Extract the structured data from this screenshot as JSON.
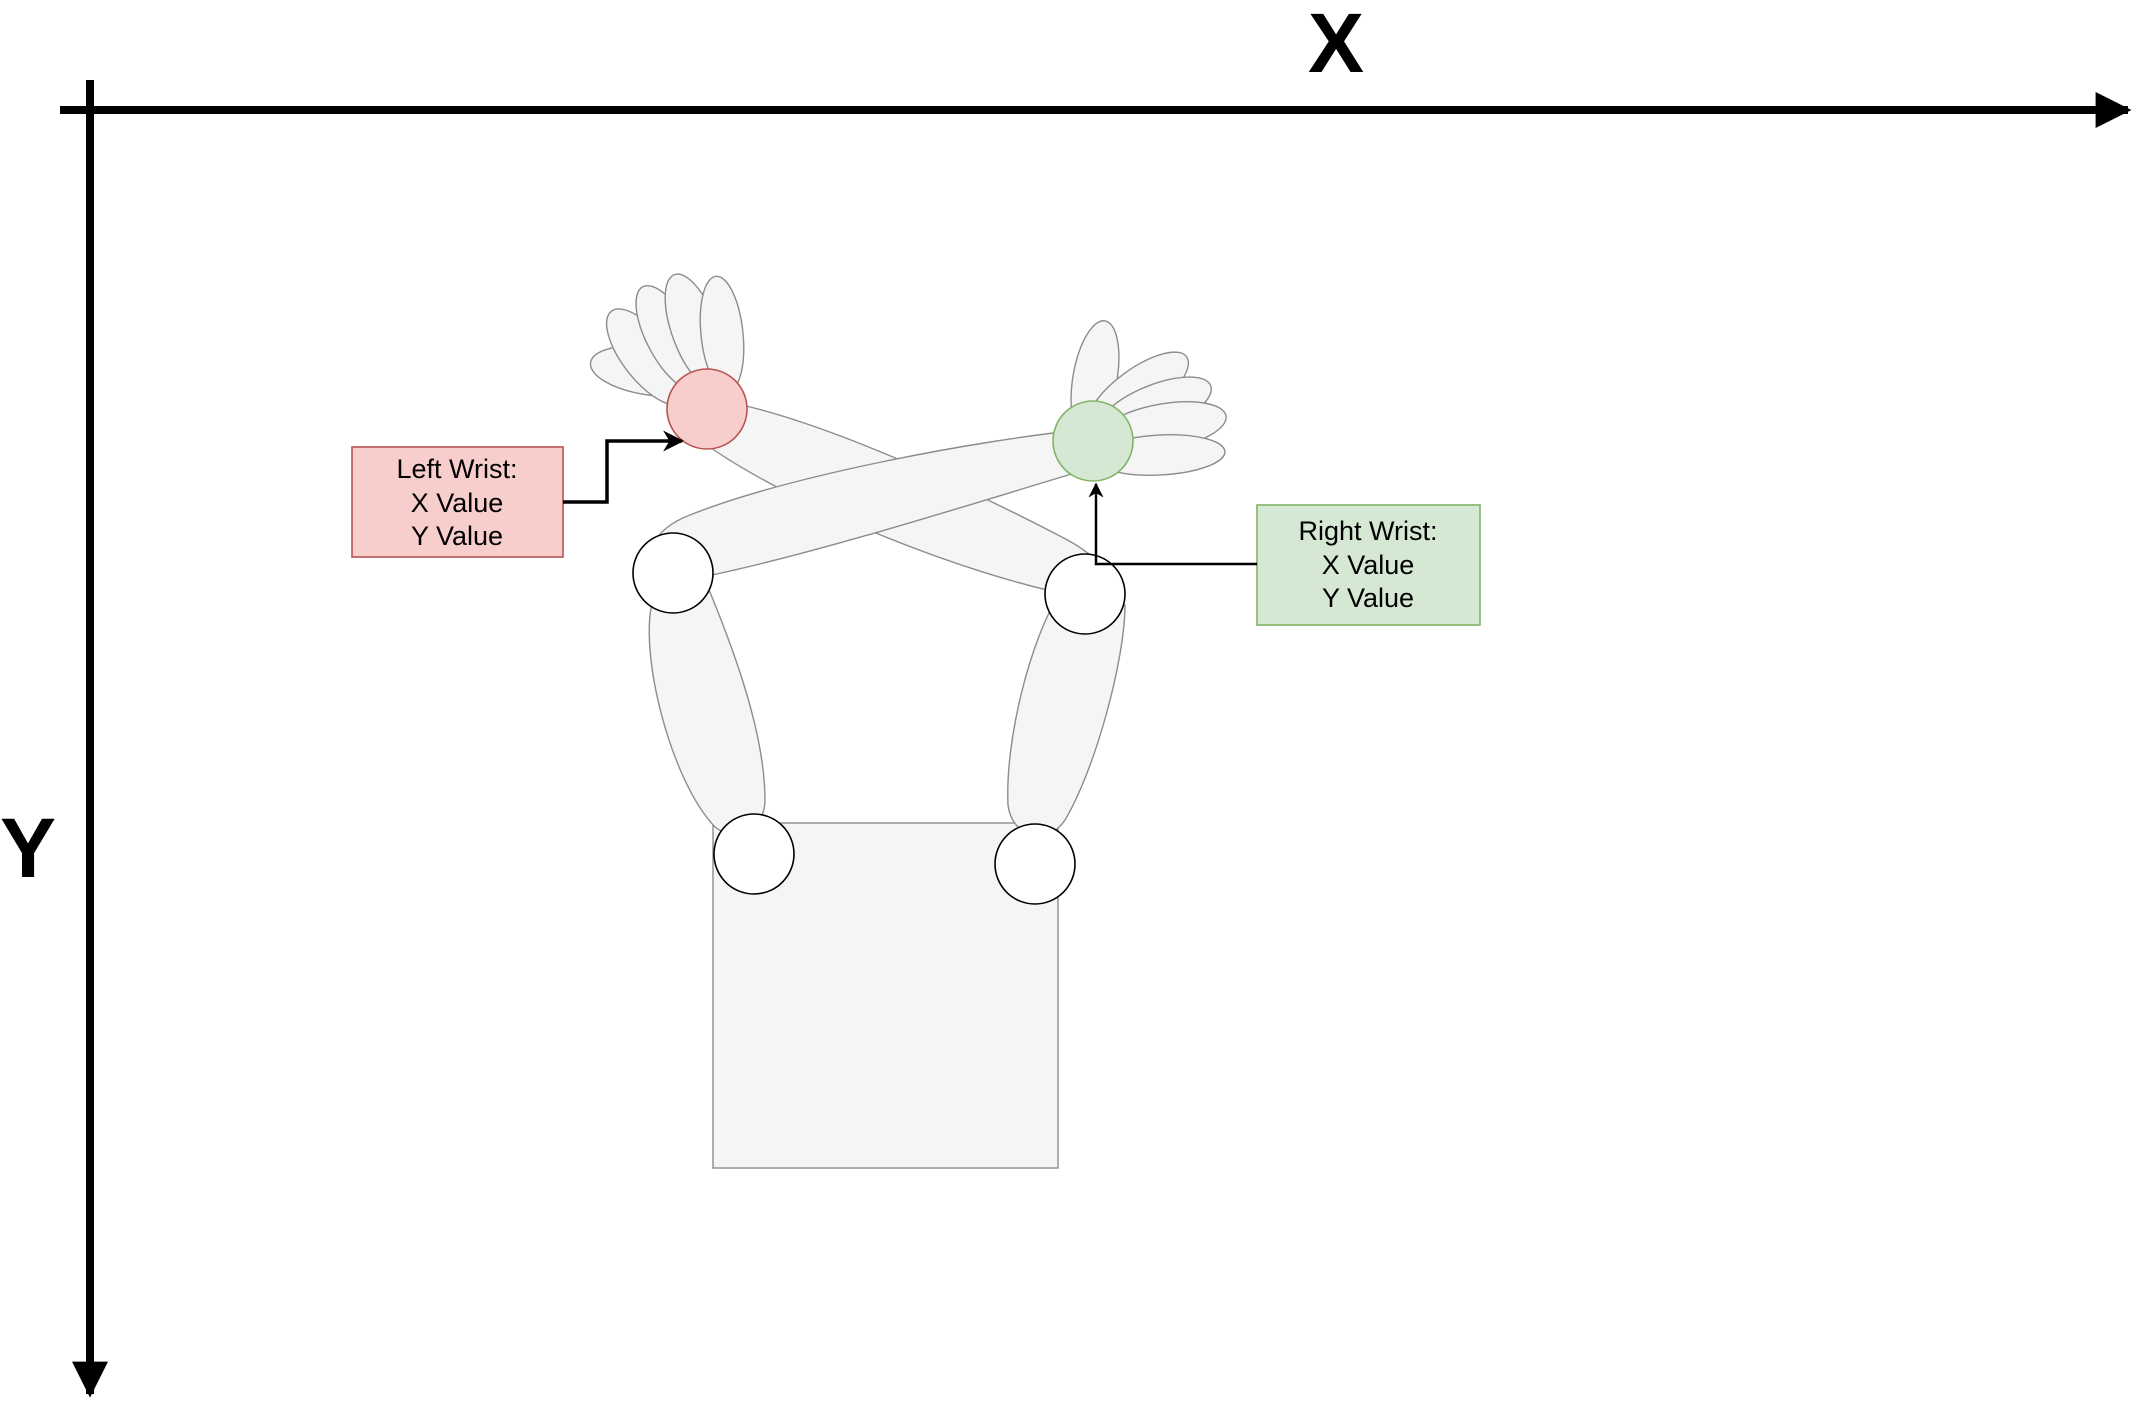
{
  "axes": {
    "x_label": "X",
    "y_label": "Y"
  },
  "left_wrist": {
    "line1": "Left Wrist:",
    "line2": "X Value",
    "line3": "Y Value",
    "fill": "#f8cecc",
    "stroke": "#b85450"
  },
  "right_wrist": {
    "line1": "Right Wrist:",
    "line2": "X Value",
    "line3": "Y Value",
    "fill": "#d5e8d4",
    "stroke": "#82b366"
  },
  "colors": {
    "body_fill": "#f5f5f5",
    "body_stroke": "#8c8c8c",
    "axis": "#000000",
    "joint_fill": "#ffffff"
  }
}
